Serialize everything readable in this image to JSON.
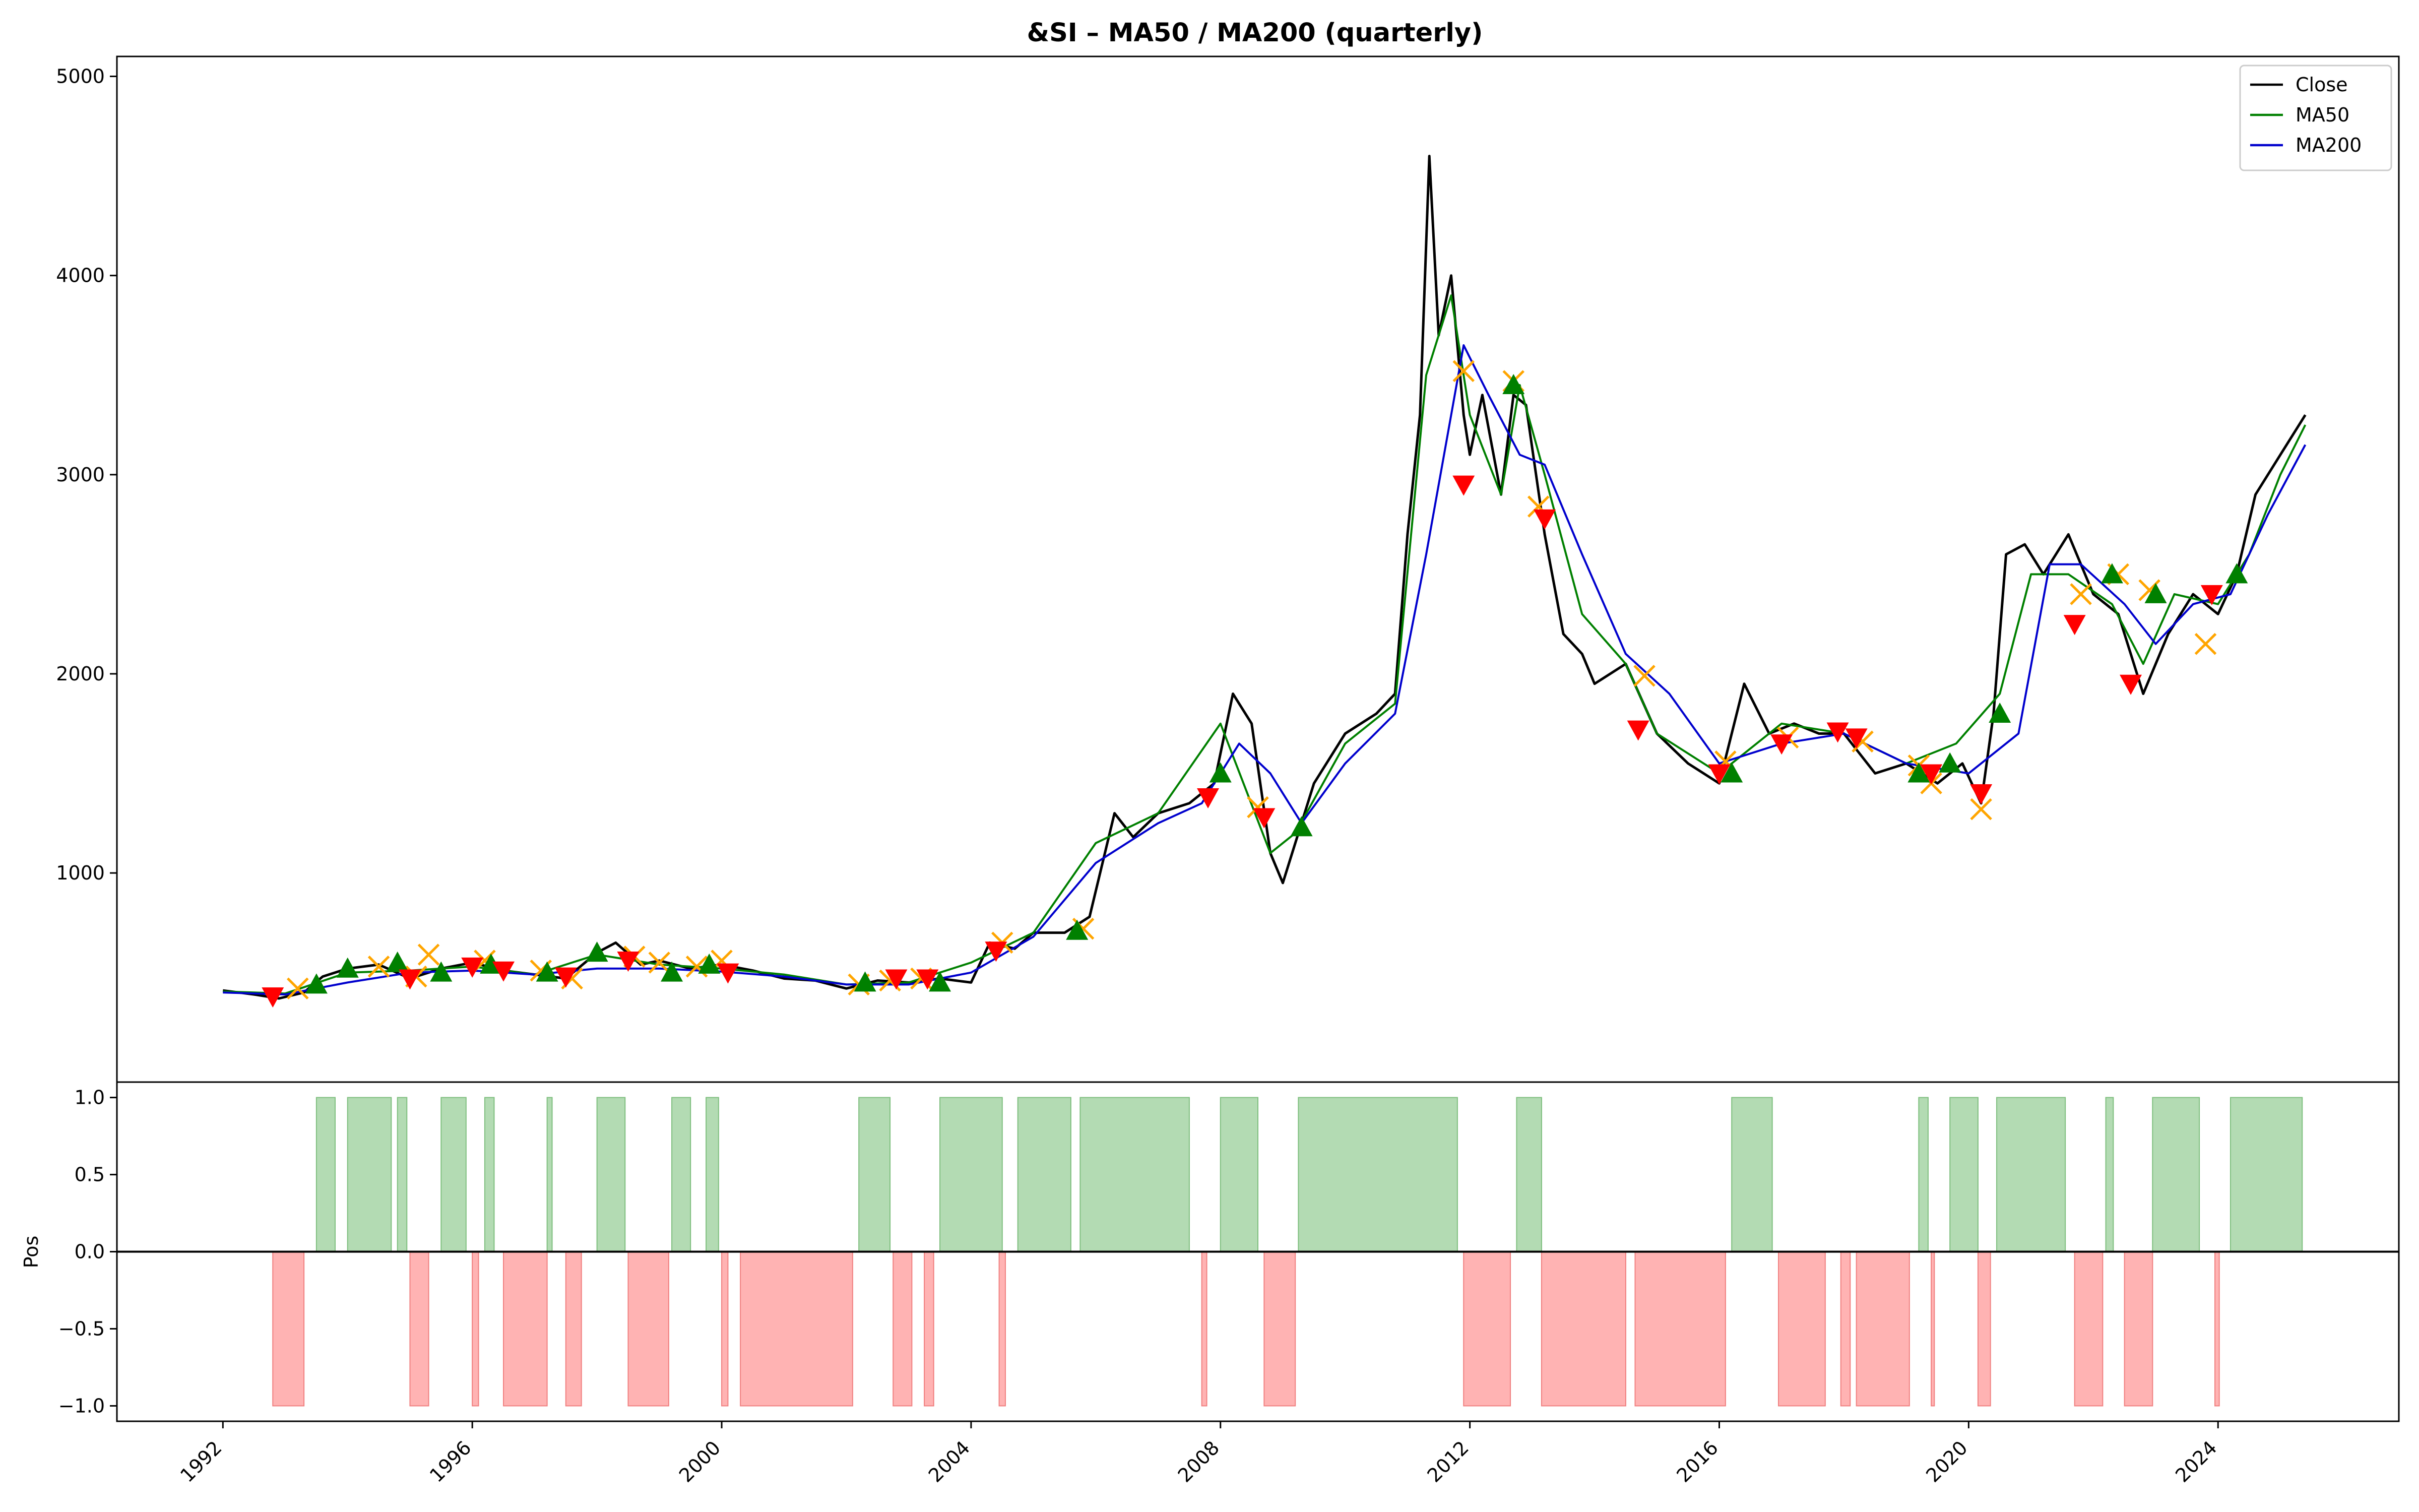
{
  "chart_data": [
    {
      "type": "line",
      "title": "&SI – MA50 / MA200 (quarterly)",
      "xlabel": "",
      "ylabel": "",
      "x_tick_labels": [
        "1992",
        "1996",
        "2000",
        "2004",
        "2008",
        "2012",
        "2016",
        "2020",
        "2024"
      ],
      "y_tick_labels": [
        "1000",
        "2000",
        "3000",
        "4000",
        "5000"
      ],
      "xlim": [
        1990.3,
        2026.9
      ],
      "ylim": [
        -50,
        5100
      ],
      "legend": {
        "position": "upper right",
        "entries": [
          "Close",
          "MA50",
          "MA200"
        ]
      },
      "series": [
        {
          "name": "Close",
          "color": "#000000",
          "x": [
            1992.0,
            1992.5,
            1992.9,
            1993.3,
            1993.6,
            1994.0,
            1994.5,
            1995.0,
            1995.5,
            1996.0,
            1996.5,
            1997.0,
            1997.5,
            1998.0,
            1998.3,
            1998.7,
            1999.0,
            1999.5,
            2000.0,
            2000.5,
            2001.0,
            2001.5,
            2002.0,
            2002.5,
            2003.0,
            2003.5,
            2004.0,
            2004.3,
            2004.7,
            2005.0,
            2005.5,
            2005.9,
            2006.3,
            2006.6,
            2007.0,
            2007.5,
            2007.9,
            2008.2,
            2008.5,
            2008.8,
            2009.0,
            2009.5,
            2010.0,
            2010.5,
            2010.8,
            2011.0,
            2011.2,
            2011.35,
            2011.5,
            2011.7,
            2011.9,
            2012.0,
            2012.2,
            2012.5,
            2012.7,
            2012.9,
            2013.2,
            2013.5,
            2013.8,
            2014.0,
            2014.5,
            2015.0,
            2015.5,
            2016.0,
            2016.4,
            2016.8,
            2017.2,
            2017.6,
            2018.0,
            2018.5,
            2019.0,
            2019.5,
            2019.9,
            2020.2,
            2020.4,
            2020.6,
            2020.9,
            2021.2,
            2021.6,
            2022.0,
            2022.4,
            2022.8,
            2023.2,
            2023.6,
            2024.0,
            2024.3,
            2024.6,
            2025.0,
            2025.4
          ],
          "values": [
            410,
            390,
            370,
            400,
            480,
            520,
            540,
            470,
            520,
            550,
            510,
            490,
            470,
            600,
            650,
            540,
            560,
            520,
            540,
            510,
            470,
            460,
            420,
            460,
            450,
            470,
            450,
            650,
            620,
            700,
            700,
            780,
            1300,
            1180,
            1300,
            1350,
            1450,
            1900,
            1750,
            1100,
            950,
            1450,
            1700,
            1800,
            1900,
            2700,
            3300,
            4600,
            3700,
            4000,
            3300,
            3100,
            3400,
            2900,
            3400,
            3350,
            2700,
            2200,
            2100,
            1950,
            2050,
            1700,
            1550,
            1450,
            1950,
            1700,
            1750,
            1700,
            1700,
            1500,
            1550,
            1450,
            1550,
            1350,
            1800,
            2600,
            2650,
            2500,
            2700,
            2400,
            2300,
            1900,
            2200,
            2400,
            2300,
            2500,
            2900,
            3100,
            3300
          ]
        },
        {
          "name": "MA50",
          "color": "#008000",
          "x": [
            1992.0,
            1993.0,
            1994.0,
            1995.0,
            1996.0,
            1997.0,
            1998.0,
            1999.0,
            2000.0,
            2001.0,
            2002.0,
            2003.0,
            2004.0,
            2005.0,
            2006.0,
            2007.0,
            2008.0,
            2008.8,
            2009.2,
            2010.0,
            2010.8,
            2011.3,
            2011.7,
            2012.0,
            2012.5,
            2012.8,
            2013.2,
            2013.8,
            2014.5,
            2015.0,
            2016.0,
            2017.0,
            2018.0,
            2019.0,
            2019.8,
            2020.5,
            2021.0,
            2021.6,
            2022.3,
            2022.8,
            2023.3,
            2024.0,
            2024.5,
            2025.0,
            2025.4
          ],
          "values": [
            405,
            395,
            500,
            510,
            530,
            490,
            590,
            540,
            520,
            490,
            440,
            450,
            550,
            700,
            1150,
            1300,
            1750,
            1100,
            1200,
            1650,
            1850,
            3500,
            3900,
            3300,
            2900,
            3450,
            3000,
            2300,
            2050,
            1700,
            1500,
            1750,
            1700,
            1550,
            1650,
            1900,
            2500,
            2500,
            2350,
            2050,
            2400,
            2350,
            2600,
            3000,
            3250
          ]
        },
        {
          "name": "MA200",
          "color": "#0000cd",
          "x": [
            1992.0,
            1993.0,
            1994.0,
            1995.0,
            1996.0,
            1997.0,
            1998.0,
            1999.0,
            2000.0,
            2001.0,
            2002.0,
            2003.0,
            2004.0,
            2005.0,
            2006.0,
            2007.0,
            2007.7,
            2008.3,
            2008.8,
            2009.3,
            2010.0,
            2010.8,
            2011.3,
            2011.9,
            2012.3,
            2012.8,
            2013.2,
            2013.8,
            2014.5,
            2015.2,
            2016.0,
            2017.0,
            2018.0,
            2019.0,
            2020.0,
            2020.8,
            2021.3,
            2021.8,
            2022.5,
            2023.0,
            2023.6,
            2024.2,
            2024.8,
            2025.4
          ],
          "values": [
            400,
            390,
            450,
            500,
            510,
            490,
            520,
            520,
            505,
            480,
            440,
            440,
            500,
            680,
            1050,
            1250,
            1350,
            1650,
            1500,
            1250,
            1550,
            1800,
            2600,
            3650,
            3400,
            3100,
            3050,
            2600,
            2100,
            1900,
            1550,
            1650,
            1700,
            1550,
            1500,
            1700,
            2550,
            2550,
            2350,
            2150,
            2350,
            2400,
            2800,
            3150
          ]
        }
      ],
      "markers": {
        "buy_color": "#008000",
        "sell_color": "#ff0000",
        "exit_color": "#ffa500",
        "buy_x": [
          1993.5,
          1994.0,
          1994.8,
          1995.5,
          1996.3,
          1997.2,
          1998.0,
          1999.2,
          1999.8,
          2002.3,
          2003.5,
          2005.7,
          2008.0,
          2009.3,
          2012.7,
          2016.2,
          2019.2,
          2019.7,
          2020.5,
          2022.3,
          2023.0,
          2024.3
        ],
        "buy_y": [
          440,
          520,
          550,
          500,
          540,
          500,
          600,
          500,
          540,
          450,
          450,
          710,
          1500,
          1230,
          3450,
          1500,
          1500,
          1550,
          1800,
          2500,
          2400,
          2500
        ],
        "sell_x": [
          1992.8,
          1995.0,
          1996.0,
          1996.5,
          1997.5,
          1998.5,
          2000.1,
          2002.8,
          2003.3,
          2004.4,
          2007.8,
          2008.7,
          2011.9,
          2013.2,
          2014.7,
          2016.0,
          2017.0,
          2017.9,
          2018.2,
          2019.4,
          2020.2,
          2021.7,
          2022.6,
          2023.9
        ],
        "sell_y": [
          380,
          470,
          530,
          510,
          480,
          560,
          500,
          470,
          470,
          610,
          1380,
          1280,
          2950,
          2780,
          1720,
          1500,
          1650,
          1710,
          1680,
          1500,
          1400,
          2250,
          1950,
          2400
        ],
        "exit_x": [
          1993.2,
          1994.5,
          1995.1,
          1995.3,
          1996.2,
          1997.1,
          1997.6,
          1998.6,
          1999.0,
          1999.6,
          2000.0,
          2002.2,
          2002.7,
          2003.2,
          2004.5,
          2005.8,
          2008.6,
          2011.9,
          2012.7,
          2013.1,
          2014.8,
          2016.1,
          2017.1,
          2018.3,
          2019.2,
          2019.4,
          2020.2,
          2021.8,
          2022.4,
          2022.9,
          2023.8
        ],
        "exit_y": [
          420,
          530,
          480,
          590,
          560,
          510,
          470,
          580,
          550,
          530,
          560,
          440,
          460,
          470,
          650,
          720,
          1330,
          3520,
          3470,
          2840,
          1990,
          1560,
          1680,
          1660,
          1540,
          1450,
          1320,
          2400,
          2500,
          2420,
          2150
        ]
      }
    },
    {
      "type": "area",
      "ylabel": "Pos",
      "y_tick_labels": [
        "−1.0",
        "−0.5",
        "0.0",
        "0.5",
        "1.0"
      ],
      "x_tick_labels": [
        "1992",
        "1996",
        "2000",
        "2004",
        "2008",
        "2012",
        "2016",
        "2020",
        "2024"
      ],
      "ylim": [
        -1.1,
        1.1
      ],
      "long_color": "#b3dbb3",
      "short_color": "#ffb3b3",
      "long_periods": [
        [
          1993.5,
          1993.8
        ],
        [
          1994.0,
          1994.7
        ],
        [
          1994.8,
          1994.95
        ],
        [
          1995.5,
          1995.9
        ],
        [
          1996.2,
          1996.35
        ],
        [
          1997.2,
          1997.28
        ],
        [
          1998.0,
          1998.45
        ],
        [
          1999.2,
          1999.5
        ],
        [
          1999.75,
          1999.95
        ],
        [
          2002.2,
          2002.7
        ],
        [
          2003.5,
          2004.5
        ],
        [
          2004.75,
          2005.6
        ],
        [
          2005.75,
          2007.5
        ],
        [
          2008.0,
          2008.6
        ],
        [
          2009.25,
          2011.8
        ],
        [
          2012.75,
          2013.15
        ],
        [
          2016.2,
          2016.85
        ],
        [
          2019.2,
          2019.35
        ],
        [
          2019.7,
          2020.15
        ],
        [
          2020.45,
          2021.55
        ],
        [
          2022.2,
          2022.32
        ],
        [
          2022.95,
          2023.7
        ],
        [
          2024.2,
          2025.35
        ]
      ],
      "short_periods": [
        [
          1992.8,
          1993.3
        ],
        [
          1995.0,
          1995.3
        ],
        [
          1996.0,
          1996.1
        ],
        [
          1996.5,
          1997.2
        ],
        [
          1997.5,
          1997.75
        ],
        [
          1998.5,
          1999.15
        ],
        [
          2000.0,
          2000.1
        ],
        [
          2000.3,
          2002.1
        ],
        [
          2002.75,
          2003.05
        ],
        [
          2003.25,
          2003.4
        ],
        [
          2004.45,
          2004.55
        ],
        [
          2007.7,
          2007.78
        ],
        [
          2008.7,
          2009.2
        ],
        [
          2011.9,
          2012.65
        ],
        [
          2013.15,
          2014.5
        ],
        [
          2014.65,
          2016.1
        ],
        [
          2016.95,
          2017.7
        ],
        [
          2017.95,
          2018.1
        ],
        [
          2018.2,
          2019.05
        ],
        [
          2019.4,
          2019.45
        ],
        [
          2020.15,
          2020.35
        ],
        [
          2021.7,
          2022.15
        ],
        [
          2022.5,
          2022.95
        ],
        [
          2023.95,
          2024.02
        ]
      ]
    }
  ]
}
